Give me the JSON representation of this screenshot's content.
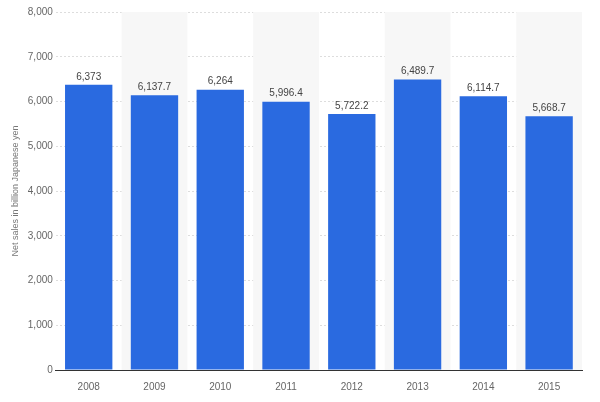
{
  "chart_data": {
    "type": "bar",
    "y_label": "Net sales in billion Japanese yen",
    "categories": [
      "2008",
      "2009",
      "2010",
      "2011",
      "2012",
      "2013",
      "2014",
      "2015"
    ],
    "values": [
      6373,
      6137.7,
      6264,
      5996.4,
      5722.2,
      6489.7,
      6114.7,
      5668.7
    ],
    "value_labels": [
      "6,373",
      "6,137.7",
      "6,264",
      "5,996.4",
      "5,722.2",
      "6,489.7",
      "6,114.7",
      "5,668.7"
    ],
    "color": "#2a6ae0",
    "ylim": [
      0,
      8000
    ],
    "yticks": [
      0,
      {
        "value": 1000,
        "label": "1,000"
      },
      {
        "value": 2000,
        "label": "2,000"
      },
      {
        "value": 3000,
        "label": "3,000"
      },
      {
        "value": 4000,
        "label": "4,000"
      },
      {
        "value": 5000,
        "label": "5,000"
      },
      {
        "value": 6000,
        "label": "6,000"
      },
      {
        "value": 7000,
        "label": "7,000"
      },
      {
        "value": 8000,
        "label": "8,000"
      }
    ],
    "grid": true,
    "data_labels": true
  }
}
